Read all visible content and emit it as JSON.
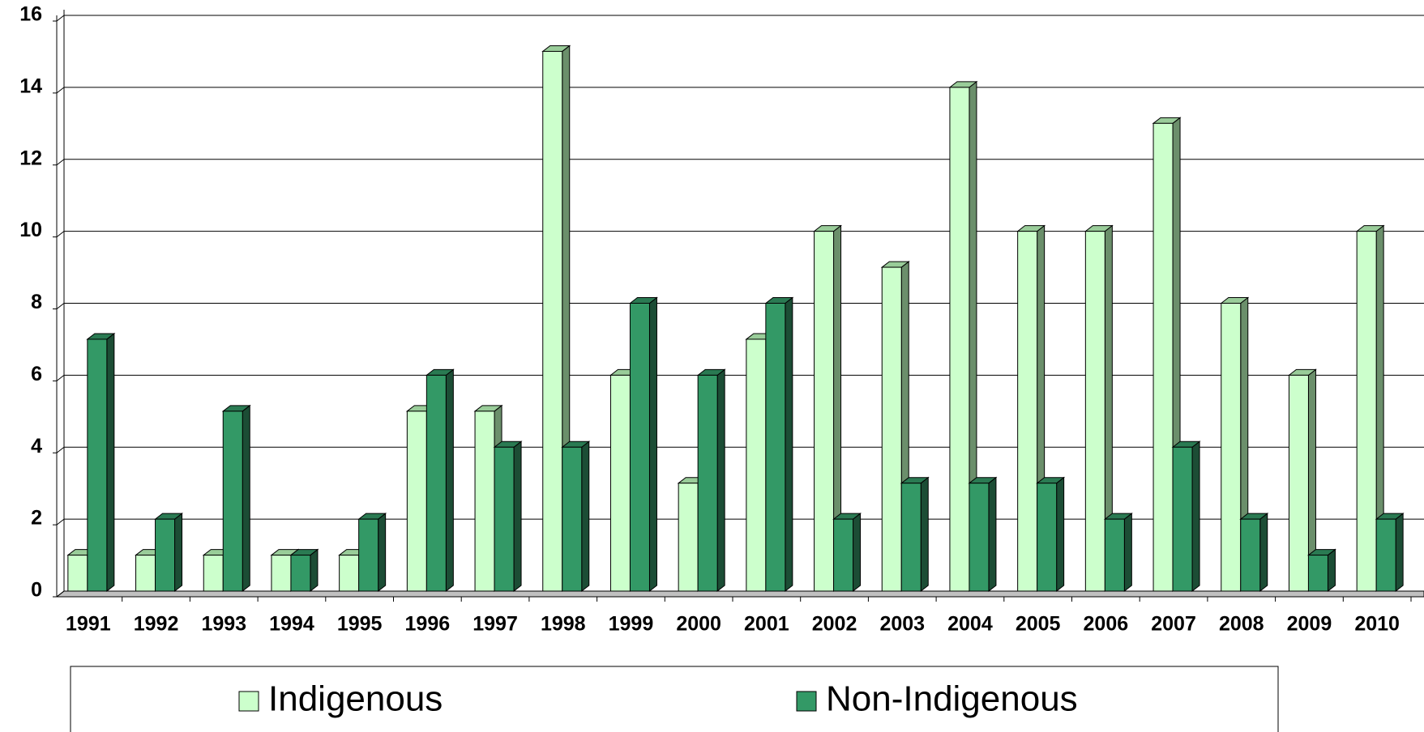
{
  "chart_data": {
    "type": "bar3d",
    "categories": [
      "1991",
      "1992",
      "1993",
      "1994",
      "1995",
      "1996",
      "1997",
      "1998",
      "1999",
      "2000",
      "2001",
      "2002",
      "2003",
      "2004",
      "2005",
      "2006",
      "2007",
      "2008",
      "2009",
      "2010"
    ],
    "series": [
      {
        "name": "Indigenous",
        "color": "#ccffcc",
        "values": [
          1,
          1,
          1,
          1,
          1,
          5,
          5,
          15,
          6,
          3,
          7,
          10,
          9,
          14,
          10,
          10,
          13,
          8,
          6,
          10
        ]
      },
      {
        "name": "Non-Indigenous",
        "color": "#339966",
        "values": [
          7,
          2,
          5,
          1,
          2,
          6,
          4,
          4,
          8,
          6,
          8,
          2,
          3,
          3,
          3,
          2,
          4,
          2,
          1,
          2
        ]
      }
    ],
    "ylim": [
      0,
      16
    ],
    "yticks": [
      0,
      2,
      4,
      6,
      8,
      10,
      12,
      14,
      16
    ],
    "grid": true,
    "legend": "bottom"
  }
}
